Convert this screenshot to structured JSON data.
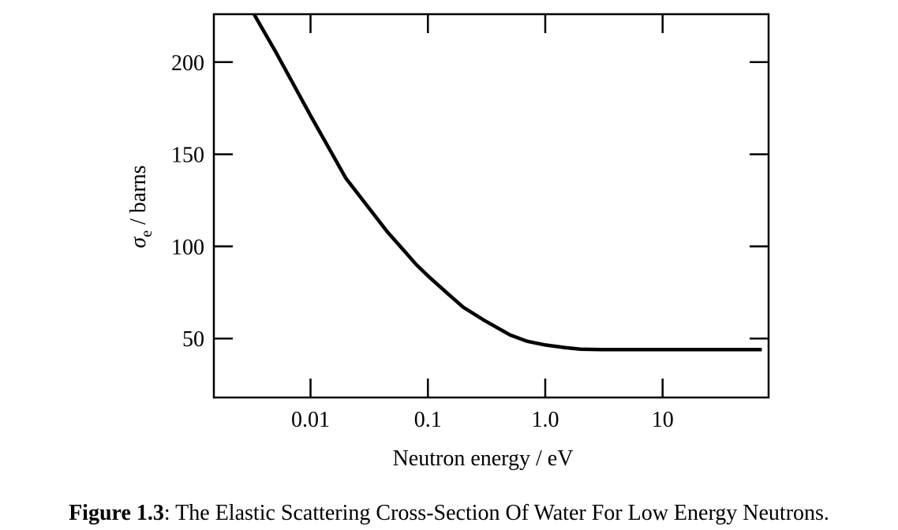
{
  "caption": {
    "figure_label": "Figure 1.3",
    "separator": ": ",
    "text": "The Elastic Scattering Cross-Section Of Water For Low Energy Neutrons."
  },
  "chart_data": {
    "type": "line",
    "xlabel": "Neutron energy / eV",
    "ylabel_symbol": "σ",
    "ylabel_subscript": "e",
    "ylabel_rest": " / barns",
    "x_scale": "log",
    "xlim": [
      0.0015,
      80
    ],
    "ylim": [
      18,
      226
    ],
    "xticks": [
      {
        "value": 0.01,
        "label": "0.01"
      },
      {
        "value": 0.1,
        "label": "0.1"
      },
      {
        "value": 1.0,
        "label": "1.0"
      },
      {
        "value": 10,
        "label": "10"
      }
    ],
    "yticks": [
      {
        "value": 50,
        "label": "50"
      },
      {
        "value": 100,
        "label": "100"
      },
      {
        "value": 150,
        "label": "150"
      },
      {
        "value": 200,
        "label": "200"
      }
    ],
    "grid": false,
    "series": [
      {
        "x": [
          0.0033,
          0.005,
          0.01,
          0.02,
          0.045,
          0.06,
          0.08,
          0.1,
          0.15,
          0.2,
          0.3,
          0.5,
          0.7,
          1.0,
          1.5,
          2.0,
          3.0,
          10,
          70
        ],
        "y": [
          226,
          206,
          171,
          137,
          108,
          99,
          90,
          84,
          74,
          67,
          60,
          52,
          48.5,
          46.5,
          45,
          44.2,
          44,
          44,
          44
        ]
      }
    ]
  }
}
